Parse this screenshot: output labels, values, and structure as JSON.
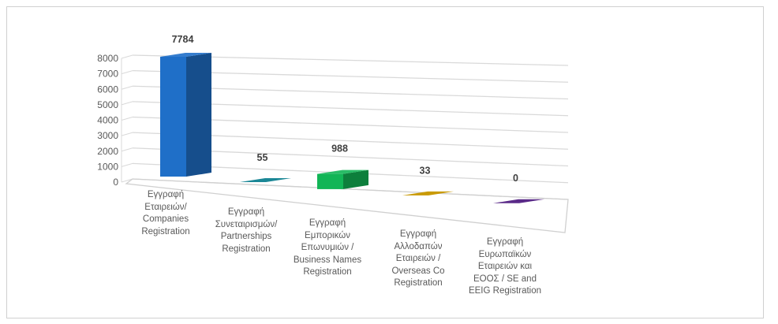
{
  "chart_data": {
    "type": "bar",
    "title": "",
    "xlabel": "",
    "ylabel": "",
    "ylim": [
      0,
      8000
    ],
    "yticks": [
      "0",
      "1000",
      "2000",
      "3000",
      "4000",
      "5000",
      "6000",
      "7000",
      "8000"
    ],
    "grid": true,
    "categories": [
      "Εγγραφή\nΕταιρειών/\nCompanies\nRegistration",
      "Εγγραφή\nΣυνεταιρισμών/\nPartnerships\nRegistration",
      "Εγγραφή\nΕμπορικών\nΕπωνυμιών /\nBusiness Names\nRegistration",
      "Εγγραφή\nΑλλοδαπών\nΕταιρειών /\nOverseas Co\nRegistration",
      "Εγγραφή\nΕυρωπαϊκών\nΕταιρειών και\nΕΟΟΣ / SE and\nEEIG Registration"
    ],
    "values": [
      7784,
      55,
      988,
      33,
      0
    ],
    "value_labels": [
      "7784",
      "55",
      "988",
      "33",
      "0"
    ],
    "colors": [
      "#1f6fc8",
      "#1b8796",
      "#12b556",
      "#c99a06",
      "#5a2a88"
    ]
  }
}
